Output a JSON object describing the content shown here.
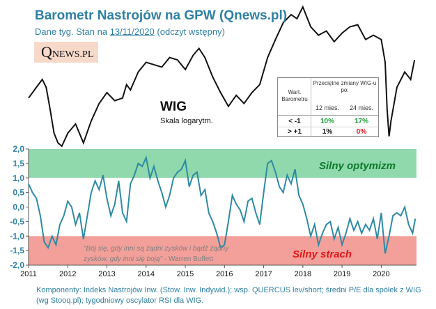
{
  "title": "Barometr Nastrojów  na GPW (Qnews.pl)",
  "subtitle": {
    "prefix": "Dane tyg. Stan na ",
    "date": "13/11/2020",
    "suffix": "  (odczyt wstępny)"
  },
  "logo": {
    "q": "Q",
    "rest": "NEWS.PL"
  },
  "wig_label": "WIG",
  "wig_scale": "Skala logarytm.",
  "table": {
    "header_left": "Wart. Barometru",
    "header_right": "Przeciętne zmiany WIG-u po:",
    "col1": "12 mies.",
    "col2": "24 mies.",
    "rows": [
      {
        "label": "< -1",
        "v12": "10%",
        "v24": "17%",
        "c12": "#1aa33a",
        "c24": "#1aa33a"
      },
      {
        "label": "> +1",
        "v12": "1%",
        "v24": "0%",
        "c12": "#111111",
        "c24": "#e0171a"
      }
    ]
  },
  "zones": {
    "optimism": {
      "label": "Silny optymizm",
      "from": 1.0,
      "to": 2.0,
      "color": "#90d9ac"
    },
    "fear": {
      "label": "Silny strach",
      "from": -2.0,
      "to": -1.0,
      "color": "#f3a09a"
    }
  },
  "quote": {
    "text": "\"Bój się, gdy inni są żądni zysków i bądź żądny zysków, gdy inni się boją\"",
    "author": " - Warren Buffett"
  },
  "footnote": "Komponenty:  Indeks Nastrojów Inw. (Stow.  Inw. Indywid.); wsp. QUERCUS  lev/short; średni P/E dla spółek z WIG (wg Stooq.pl); tygodniowy oscylator RSI dla WIG.",
  "chart_data": {
    "type": "line",
    "title": "Barometr Nastrojów na GPW",
    "x_range": [
      2011.0,
      2020.9
    ],
    "x_ticks": [
      "2011",
      "2012",
      "2013",
      "2014",
      "2015",
      "2016",
      "2017",
      "2018",
      "2019",
      "2020"
    ],
    "y_range": [
      -2.0,
      2.0
    ],
    "y_ticks": [
      "2,0",
      "1,5",
      "1,0",
      "0,5",
      "0,0",
      "-0,5",
      "-1,0",
      "-1,5",
      "-2,0"
    ],
    "series": [
      {
        "name": "WIG",
        "color": "#111111",
        "scale": "logarithmic, index points",
        "x": [
          2011.0,
          2011.2,
          2011.35,
          2011.45,
          2011.55,
          2011.65,
          2011.75,
          2011.85,
          2012.0,
          2012.2,
          2012.4,
          2012.6,
          2012.8,
          2013.0,
          2013.2,
          2013.4,
          2013.5,
          2013.6,
          2013.8,
          2014.0,
          2014.2,
          2014.4,
          2014.6,
          2014.8,
          2015.0,
          2015.2,
          2015.35,
          2015.5,
          2015.7,
          2015.9,
          2016.1,
          2016.3,
          2016.5,
          2016.7,
          2016.9,
          2017.1,
          2017.3,
          2017.5,
          2017.7,
          2017.85,
          2018.0,
          2018.2,
          2018.4,
          2018.6,
          2018.8,
          2019.0,
          2019.2,
          2019.4,
          2019.6,
          2019.8,
          2020.0,
          2020.1,
          2020.15,
          2020.2,
          2020.25,
          2020.4,
          2020.6,
          2020.75,
          2020.85
        ],
        "values": [
          46000,
          48000,
          49500,
          48000,
          44000,
          40000,
          38500,
          38000,
          40000,
          41500,
          38500,
          42000,
          45000,
          47000,
          45500,
          46000,
          48500,
          47500,
          51000,
          53000,
          52500,
          52000,
          54000,
          53500,
          51500,
          54500,
          56000,
          54000,
          50000,
          47000,
          44500,
          46500,
          45000,
          47000,
          48500,
          54000,
          58000,
          62000,
          64000,
          63000,
          66000,
          61000,
          59000,
          60000,
          57500,
          59500,
          61000,
          61500,
          58000,
          59000,
          58000,
          53000,
          44000,
          39500,
          42000,
          48000,
          51000,
          49500,
          53500
        ]
      },
      {
        "name": "Barometr",
        "color": "#2e8aa3",
        "x": [
          2011.0,
          2011.1,
          2011.2,
          2011.3,
          2011.4,
          2011.5,
          2011.6,
          2011.7,
          2011.8,
          2011.9,
          2012.0,
          2012.1,
          2012.2,
          2012.3,
          2012.4,
          2012.5,
          2012.6,
          2012.7,
          2012.8,
          2012.9,
          2013.0,
          2013.1,
          2013.2,
          2013.3,
          2013.4,
          2013.5,
          2013.6,
          2013.7,
          2013.8,
          2013.9,
          2014.0,
          2014.1,
          2014.2,
          2014.3,
          2014.4,
          2014.5,
          2014.6,
          2014.7,
          2014.8,
          2014.9,
          2015.0,
          2015.1,
          2015.2,
          2015.3,
          2015.4,
          2015.5,
          2015.6,
          2015.7,
          2015.8,
          2015.9,
          2016.0,
          2016.1,
          2016.2,
          2016.3,
          2016.4,
          2016.5,
          2016.6,
          2016.7,
          2016.8,
          2016.9,
          2017.0,
          2017.1,
          2017.2,
          2017.3,
          2017.4,
          2017.5,
          2017.6,
          2017.7,
          2017.8,
          2017.9,
          2018.0,
          2018.1,
          2018.2,
          2018.3,
          2018.4,
          2018.5,
          2018.6,
          2018.7,
          2018.8,
          2018.9,
          2019.0,
          2019.1,
          2019.2,
          2019.3,
          2019.4,
          2019.5,
          2019.6,
          2019.7,
          2019.8,
          2019.9,
          2020.0,
          2020.1,
          2020.2,
          2020.3,
          2020.4,
          2020.5,
          2020.6,
          2020.7,
          2020.8,
          2020.87
        ],
        "values": [
          0.8,
          0.5,
          0.3,
          -0.3,
          -1.2,
          -1.4,
          -1.0,
          -1.3,
          -0.6,
          -0.3,
          0.2,
          0.0,
          -0.6,
          -0.2,
          -1.1,
          -0.3,
          0.5,
          0.9,
          0.6,
          1.1,
          0.3,
          -0.3,
          0.1,
          0.9,
          -0.2,
          -0.5,
          0.8,
          1.1,
          1.5,
          1.4,
          1.7,
          1.0,
          1.4,
          0.9,
          0.5,
          0.0,
          0.4,
          1.0,
          1.2,
          1.3,
          1.6,
          0.7,
          1.1,
          1.2,
          0.4,
          0.6,
          -0.2,
          -0.5,
          -0.9,
          -1.4,
          -1.3,
          -0.5,
          0.4,
          0.1,
          -0.1,
          -0.5,
          0.2,
          0.3,
          -0.2,
          -0.6,
          0.5,
          1.5,
          1.6,
          1.2,
          0.7,
          0.5,
          1.1,
          0.8,
          1.3,
          0.4,
          0.1,
          -0.4,
          -1.0,
          -0.6,
          -1.3,
          -0.9,
          -0.6,
          -0.5,
          -1.1,
          -0.7,
          -1.3,
          -0.9,
          -0.4,
          -0.8,
          -0.5,
          -0.9,
          -0.6,
          -0.8,
          -0.4,
          -1.1,
          -0.2,
          -1.6,
          -1.0,
          -0.3,
          -0.2,
          -0.3,
          0.0,
          -0.6,
          -0.9,
          -0.4
        ]
      }
    ]
  }
}
